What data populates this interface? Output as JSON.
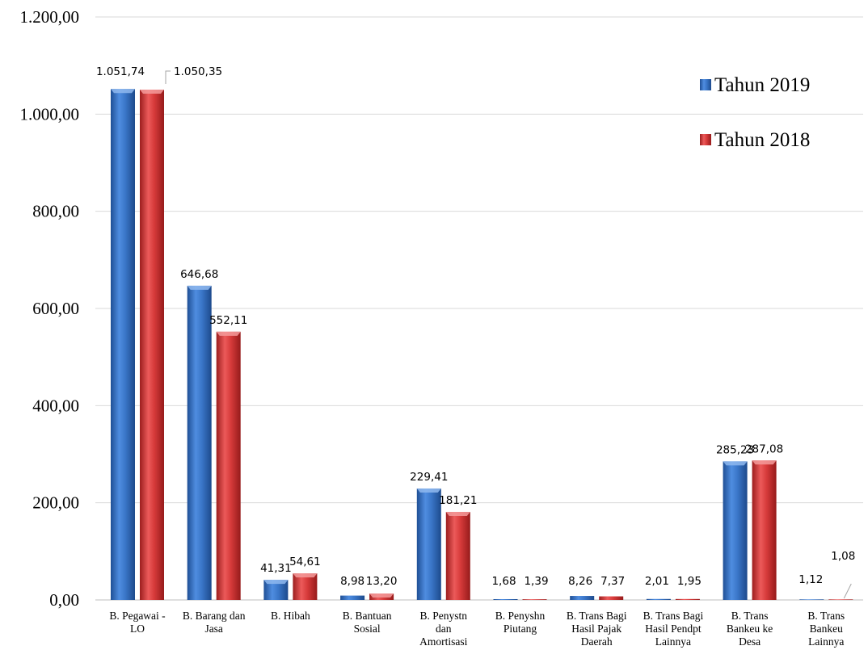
{
  "chart_data": {
    "type": "bar",
    "categories": [
      [
        "B. Pegawai -",
        "LO"
      ],
      [
        "B. Barang dan",
        "Jasa"
      ],
      [
        "B. Hibah"
      ],
      [
        "B. Bantuan",
        "Sosial"
      ],
      [
        "B. Penystn",
        "dan",
        "Amortisasi"
      ],
      [
        "B. Penyshn",
        "Piutang"
      ],
      [
        "B. Trans Bagi",
        "Hasil Pajak",
        "Daerah"
      ],
      [
        "B. Trans Bagi",
        "Hasil Pendpt",
        "Lainnya"
      ],
      [
        "B. Trans",
        "Bankeu ke",
        "Desa"
      ],
      [
        "B. Trans",
        "Bankeu",
        "Lainnya"
      ]
    ],
    "series": [
      {
        "name": "Tahun 2019",
        "color": "#3a76c8",
        "values": [
          1051.74,
          646.68,
          41.31,
          8.98,
          229.41,
          1.68,
          8.26,
          2.01,
          285.23,
          1.12
        ],
        "labels": [
          "1.051,74",
          "646,68",
          "41,31",
          "8,98",
          "229,41",
          "1,68",
          "8,26",
          "2,01",
          "285,23",
          "1,12"
        ]
      },
      {
        "name": "Tahun 2018",
        "color": "#d63a3a",
        "values": [
          1050.35,
          552.11,
          54.61,
          13.2,
          181.21,
          1.39,
          7.37,
          1.95,
          287.08,
          1.08
        ],
        "labels": [
          "1.050,35",
          "552,11",
          "54,61",
          "13,20",
          "181,21",
          "1,39",
          "7,37",
          "1,95",
          "287,08",
          "1,08"
        ]
      }
    ],
    "yticks": [
      0,
      200,
      400,
      600,
      800,
      1000,
      1200
    ],
    "ytick_labels": [
      "0,00",
      "200,00",
      "400,00",
      "600,00",
      "800,00",
      "1.000,00",
      "1.200,00"
    ],
    "ylim": [
      0,
      1200
    ],
    "grid": true,
    "legend_position": "top-right",
    "title": "",
    "xlabel": "",
    "ylabel": ""
  }
}
